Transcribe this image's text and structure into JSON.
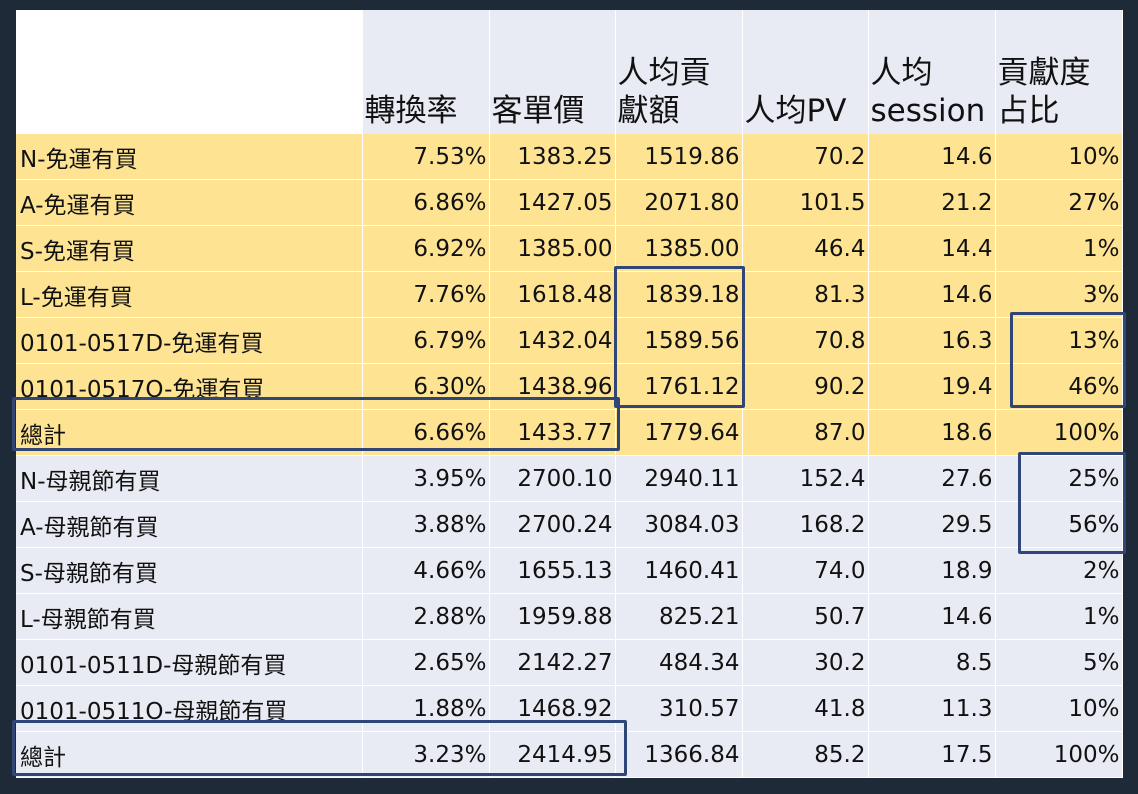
{
  "chart_data": {
    "type": "table",
    "columns": [
      "",
      "轉換率",
      "客單價",
      "人均貢\n獻額",
      "人均PV",
      "人均\nsession",
      "貢獻度\n占比"
    ],
    "groups": [
      {
        "rows": [
          {
            "label": "N-免運有買",
            "values": [
              "7.53%",
              "1383.25",
              "1519.86",
              "70.2",
              "14.6",
              "10%"
            ]
          },
          {
            "label": "A-免運有買",
            "values": [
              "6.86%",
              "1427.05",
              "2071.80",
              "101.5",
              "21.2",
              "27%"
            ]
          },
          {
            "label": "S-免運有買",
            "values": [
              "6.92%",
              "1385.00",
              "1385.00",
              "46.4",
              "14.4",
              "1%"
            ]
          },
          {
            "label": "L-免運有買",
            "values": [
              "7.76%",
              "1618.48",
              "1839.18",
              "81.3",
              "14.6",
              "3%"
            ]
          },
          {
            "label": "0101-0517D-免運有買",
            "values": [
              "6.79%",
              "1432.04",
              "1589.56",
              "70.8",
              "16.3",
              "13%"
            ]
          },
          {
            "label": "0101-0517O-免運有買",
            "values": [
              "6.30%",
              "1438.96",
              "1761.12",
              "90.2",
              "19.4",
              "46%"
            ]
          },
          {
            "label": "總計",
            "values": [
              "6.66%",
              "1433.77",
              "1779.64",
              "87.0",
              "18.6",
              "100%"
            ]
          }
        ]
      },
      {
        "rows": [
          {
            "label": "N-母親節有買",
            "values": [
              "3.95%",
              "2700.10",
              "2940.11",
              "152.4",
              "27.6",
              "25%"
            ]
          },
          {
            "label": "A-母親節有買",
            "values": [
              "3.88%",
              "2700.24",
              "3084.03",
              "168.2",
              "29.5",
              "56%"
            ]
          },
          {
            "label": "S-母親節有買",
            "values": [
              "4.66%",
              "1655.13",
              "1460.41",
              "74.0",
              "18.9",
              "2%"
            ]
          },
          {
            "label": "L-母親節有買",
            "values": [
              "2.88%",
              "1959.88",
              "825.21",
              "50.7",
              "14.6",
              "1%"
            ]
          },
          {
            "label": "0101-0511D-母親節有買",
            "values": [
              "2.65%",
              "2142.27",
              "484.34",
              "30.2",
              "8.5",
              "5%"
            ]
          },
          {
            "label": "0101-0511O-母親節有買",
            "values": [
              "1.88%",
              "1468.92",
              "310.57",
              "41.8",
              "11.3",
              "10%"
            ]
          },
          {
            "label": "總計",
            "values": [
              "3.23%",
              "2414.95",
              "1366.84",
              "85.2",
              "17.5",
              "100%"
            ]
          }
        ]
      }
    ]
  },
  "colors": {
    "background": "#1f2a38",
    "sheet": "#e9ebf4",
    "highlight_group": "#fde392",
    "plain_group": "#e9ebf4",
    "box_outline": "#2f4676"
  }
}
